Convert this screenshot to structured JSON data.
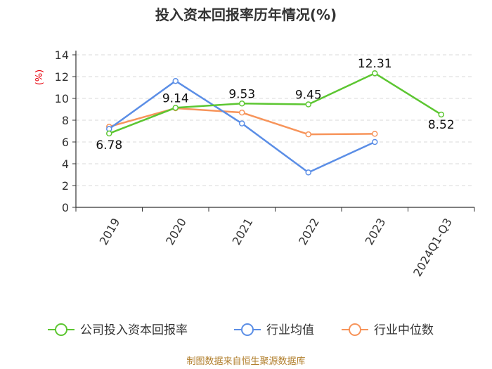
{
  "chart_data": {
    "type": "line",
    "title": "投入资本回报率历年情况(%)",
    "ylabel": "(%)",
    "xlabel": "",
    "ylim": [
      0,
      14
    ],
    "yticks": [
      0,
      2,
      4,
      6,
      8,
      10,
      12,
      14
    ],
    "grid": true,
    "legend_position": "bottom",
    "categories": [
      "2019",
      "2020",
      "2021",
      "2022",
      "2023",
      "2024Q1-Q3"
    ],
    "series": [
      {
        "name": "公司投入资本回报率",
        "color": "#5cc631",
        "values": [
          6.78,
          9.14,
          9.53,
          9.45,
          12.31,
          8.52
        ],
        "labels": [
          "6.78",
          "9.14",
          "9.53",
          "9.45",
          "12.31",
          "8.52"
        ]
      },
      {
        "name": "行业均值",
        "color": "#5b8ee6",
        "values": [
          7.2,
          11.6,
          7.7,
          3.2,
          6.0,
          null
        ]
      },
      {
        "name": "行业中位数",
        "color": "#f7945a",
        "values": [
          7.4,
          9.1,
          8.7,
          6.7,
          6.75,
          null
        ]
      }
    ],
    "source": "制图数据来自恒生聚源数据库"
  }
}
